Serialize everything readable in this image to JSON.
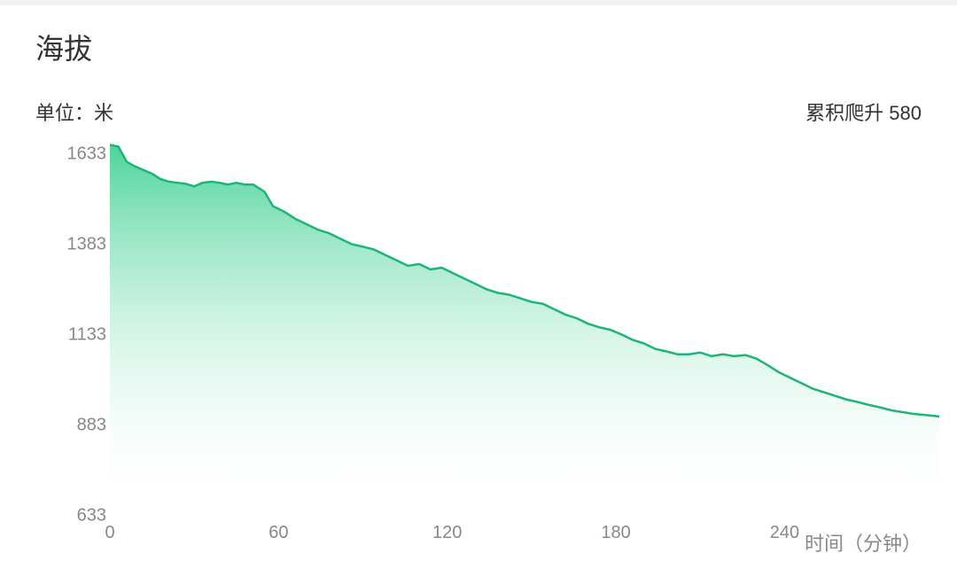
{
  "title": "海拔",
  "unit_label": "单位：米",
  "cumulative_label": "累积爬升 580",
  "xlabel": "时间（分钟）",
  "chart": {
    "type": "area",
    "x_min": 0,
    "x_max": 295,
    "y_min": 633,
    "y_max": 1683,
    "y_ticks": [
      1633,
      1383,
      1133,
      883,
      633
    ],
    "x_ticks": [
      0,
      60,
      120,
      180,
      240
    ],
    "line_color": "#1db576",
    "line_width": 2.5,
    "fill_top_color": "#2ecc8a",
    "fill_bottom_color": "#ffffff",
    "fill_top_opacity": 0.85,
    "fill_bottom_opacity": 0.0,
    "background_color": "#ffffff",
    "tick_color": "#888888",
    "tick_fontsize": 20,
    "title_fontsize": 32,
    "label_fontsize": 22,
    "points": [
      [
        0,
        1660
      ],
      [
        3,
        1655
      ],
      [
        6,
        1613
      ],
      [
        9,
        1600
      ],
      [
        12,
        1590
      ],
      [
        15,
        1580
      ],
      [
        18,
        1565
      ],
      [
        21,
        1558
      ],
      [
        24,
        1555
      ],
      [
        27,
        1552
      ],
      [
        30,
        1545
      ],
      [
        33,
        1555
      ],
      [
        36,
        1558
      ],
      [
        39,
        1555
      ],
      [
        42,
        1550
      ],
      [
        45,
        1555
      ],
      [
        48,
        1550
      ],
      [
        51,
        1550
      ],
      [
        55,
        1530
      ],
      [
        58,
        1490
      ],
      [
        62,
        1475
      ],
      [
        66,
        1455
      ],
      [
        70,
        1440
      ],
      [
        74,
        1425
      ],
      [
        78,
        1415
      ],
      [
        82,
        1400
      ],
      [
        86,
        1385
      ],
      [
        90,
        1378
      ],
      [
        94,
        1370
      ],
      [
        98,
        1355
      ],
      [
        102,
        1340
      ],
      [
        106,
        1325
      ],
      [
        110,
        1330
      ],
      [
        114,
        1315
      ],
      [
        118,
        1320
      ],
      [
        122,
        1305
      ],
      [
        126,
        1290
      ],
      [
        130,
        1275
      ],
      [
        134,
        1260
      ],
      [
        138,
        1250
      ],
      [
        142,
        1245
      ],
      [
        146,
        1235
      ],
      [
        150,
        1225
      ],
      [
        154,
        1220
      ],
      [
        158,
        1205
      ],
      [
        162,
        1190
      ],
      [
        166,
        1180
      ],
      [
        170,
        1165
      ],
      [
        174,
        1155
      ],
      [
        178,
        1148
      ],
      [
        182,
        1135
      ],
      [
        186,
        1120
      ],
      [
        190,
        1110
      ],
      [
        194,
        1095
      ],
      [
        198,
        1088
      ],
      [
        202,
        1080
      ],
      [
        206,
        1080
      ],
      [
        210,
        1085
      ],
      [
        214,
        1075
      ],
      [
        218,
        1080
      ],
      [
        222,
        1075
      ],
      [
        226,
        1078
      ],
      [
        230,
        1068
      ],
      [
        234,
        1050
      ],
      [
        238,
        1030
      ],
      [
        242,
        1015
      ],
      [
        246,
        1000
      ],
      [
        250,
        985
      ],
      [
        254,
        975
      ],
      [
        258,
        965
      ],
      [
        262,
        955
      ],
      [
        266,
        948
      ],
      [
        270,
        940
      ],
      [
        274,
        933
      ],
      [
        278,
        925
      ],
      [
        282,
        920
      ],
      [
        286,
        915
      ],
      [
        290,
        912
      ],
      [
        295,
        908
      ]
    ]
  }
}
